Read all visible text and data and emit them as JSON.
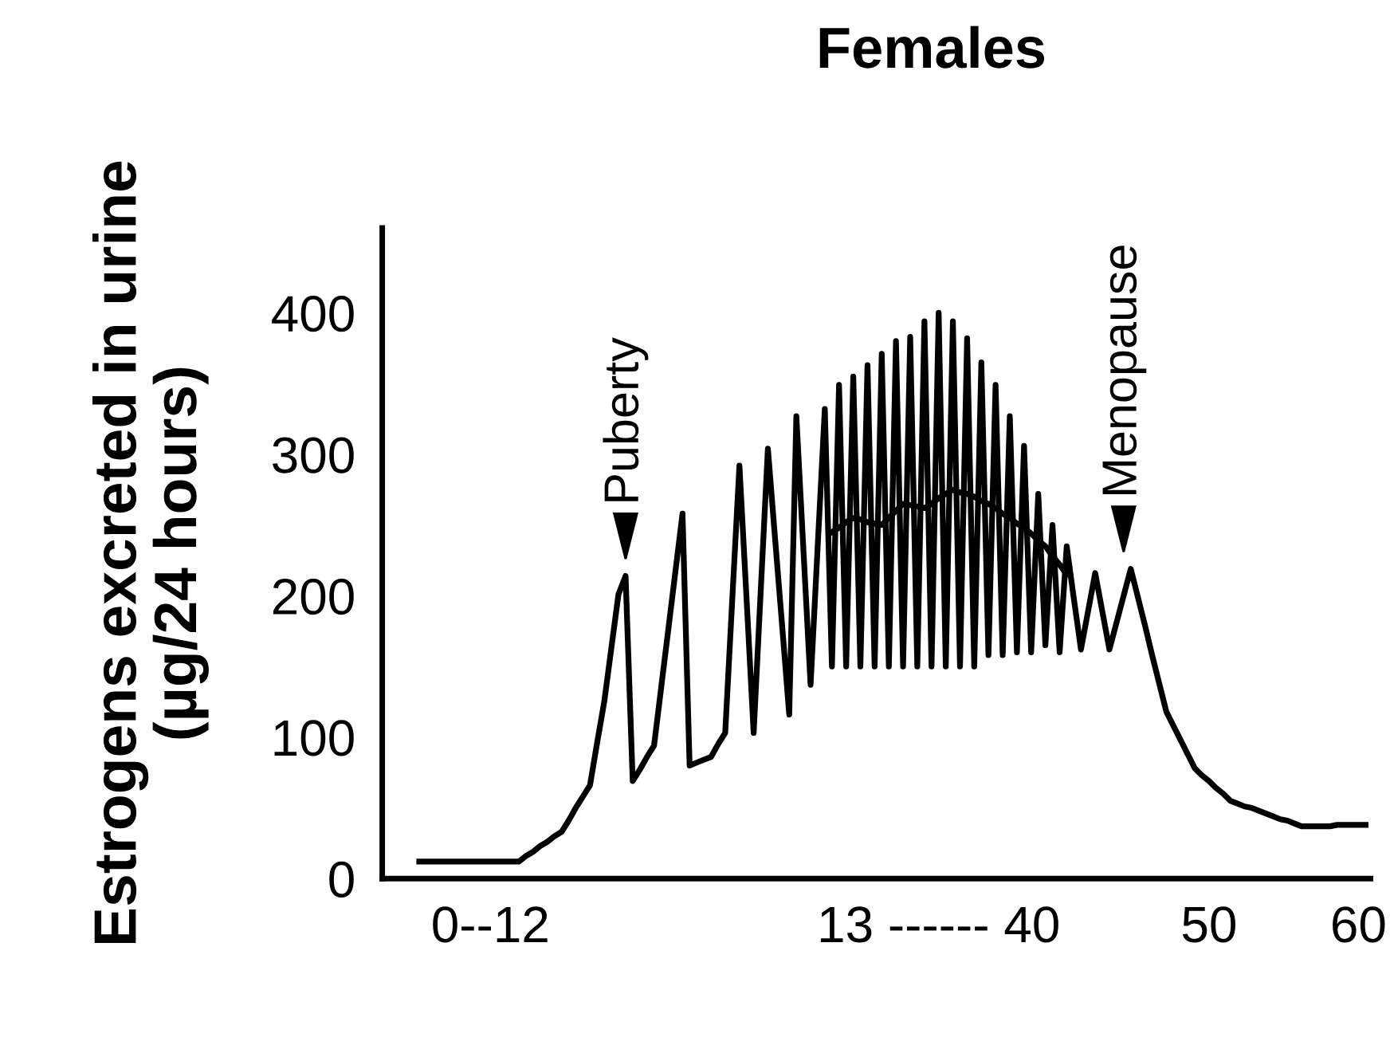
{
  "chart_data": {
    "type": "line",
    "title": "Females",
    "ylabel": "Estrogens excreted in urine\n(µg/24 hours)",
    "categories": [
      null,
      null,
      null,
      null,
      null,
      null,
      null,
      null,
      null,
      null,
      "0--12",
      null,
      null,
      null,
      null,
      null,
      null,
      null,
      null,
      null,
      null,
      null,
      null,
      null,
      null,
      null,
      null,
      null,
      null,
      null,
      null,
      null,
      null,
      null,
      null,
      null,
      null,
      null,
      null,
      null,
      null,
      null,
      null,
      null,
      null,
      null,
      null,
      null,
      null,
      null,
      null,
      null,
      null,
      null,
      null,
      null,
      null,
      null,
      null,
      null,
      null,
      null,
      null,
      null,
      null,
      null,
      null,
      null,
      null,
      null,
      null,
      null,
      null,
      "13 ------ 40",
      null,
      null,
      null,
      null,
      null,
      null,
      null,
      null,
      null,
      null,
      null,
      null,
      null,
      null,
      null,
      null,
      null,
      null,
      null,
      null,
      null,
      null,
      null,
      null,
      null,
      null,
      null,
      null,
      null,
      null,
      null,
      null,
      null,
      null,
      null,
      null,
      null,
      "50",
      null,
      null,
      null,
      null,
      null,
      null,
      null,
      null,
      null,
      null,
      null,
      null,
      null,
      null,
      null,
      null,
      null,
      null,
      null,
      null,
      "60",
      null
    ],
    "series": [
      {
        "color": "#000000",
        "values": [
          12,
          12,
          12,
          12,
          12,
          12,
          12,
          12,
          12,
          12,
          12,
          12,
          12,
          12,
          12,
          16,
          19,
          23,
          26,
          30,
          33,
          41,
          50,
          58,
          66,
          96,
          125,
          163,
          201,
          214,
          69,
          77,
          86,
          94,
          135,
          176,
          217,
          258,
          80,
          82,
          84,
          86,
          95,
          103,
          198,
          292,
          198,
          103,
          204,
          304,
          241,
          179,
          116,
          327,
          232,
          137,
          235,
          332,
          150,
          349,
          150,
          355,
          150,
          363,
          150,
          371,
          150,
          380,
          150,
          383,
          150,
          394,
          150,
          400,
          150,
          394,
          150,
          382,
          150,
          365,
          158,
          349,
          158,
          327,
          160,
          306,
          160,
          272,
          165,
          250,
          160,
          235,
          198,
          162,
          189,
          216,
          189,
          162,
          181,
          200,
          219,
          199,
          179,
          158,
          138,
          118,
          108,
          98,
          88,
          78,
          73,
          69,
          64,
          60,
          55,
          53,
          51,
          50,
          48,
          46,
          44,
          42,
          41,
          39,
          37,
          37,
          37,
          37,
          37,
          38,
          38,
          38,
          38,
          38
        ]
      },
      {
        "color": "#000000",
        "values": [
          null,
          null,
          null,
          null,
          null,
          null,
          null,
          null,
          null,
          null,
          null,
          null,
          null,
          null,
          null,
          null,
          null,
          null,
          null,
          null,
          null,
          null,
          null,
          null,
          null,
          null,
          null,
          null,
          null,
          null,
          null,
          null,
          null,
          null,
          null,
          null,
          null,
          null,
          null,
          null,
          null,
          null,
          null,
          null,
          null,
          null,
          null,
          null,
          null,
          null,
          null,
          null,
          null,
          null,
          null,
          null,
          null,
          null,
          245,
          248,
          252,
          255,
          254,
          252,
          251,
          250,
          255,
          260,
          265,
          264,
          263,
          262,
          265,
          269,
          272,
          275,
          273,
          272,
          270,
          267,
          265,
          262,
          258,
          255,
          251,
          248,
          244,
          239,
          235,
          228,
          222,
          215,
          null,
          null,
          null,
          null,
          null,
          null,
          null,
          null,
          null,
          null,
          null,
          null,
          null,
          null,
          null,
          null,
          null,
          null,
          null,
          null,
          null,
          null,
          null,
          null,
          null,
          null,
          null,
          null,
          null,
          null,
          null,
          null,
          null,
          null,
          null,
          null,
          null,
          null,
          null,
          null,
          null,
          null
        ]
      }
    ],
    "ylim": [
      0,
      460
    ],
    "yticks": [
      0,
      100,
      200,
      300,
      400
    ],
    "annotations": [
      "Puberty",
      "Menopause"
    ],
    "grid": false,
    "legend": false
  }
}
